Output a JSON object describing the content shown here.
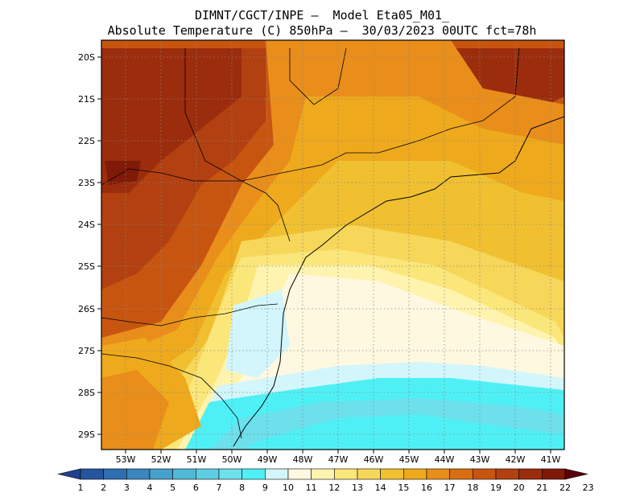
{
  "header": {
    "title_line1": "DIMNT/CGCT/INPE —  Model Eta05_M01_",
    "title_line2": "Absolute Temperature (C) 850hPa —  30/03/2023 00UTC fct=78h"
  },
  "map": {
    "lat_labels": [
      "20S",
      "21S",
      "22S",
      "23S",
      "24S",
      "25S",
      "26S",
      "27S",
      "28S",
      "29S"
    ],
    "lon_labels": [
      "53W",
      "52W",
      "51W",
      "50W",
      "49W",
      "48W",
      "47W",
      "46W",
      "45W",
      "44W",
      "43W",
      "42W",
      "41W"
    ]
  },
  "colorbar": {
    "labels": [
      "1",
      "2",
      "3",
      "4",
      "5",
      "6",
      "7",
      "8",
      "9",
      "10",
      "11",
      "12",
      "13",
      "14",
      "15",
      "16",
      "17",
      "18",
      "19",
      "20",
      "21",
      "22",
      "23"
    ],
    "colors": [
      "#1f3f8f",
      "#2456a0",
      "#2f6eb0",
      "#3a86bf",
      "#46a0cc",
      "#52b8d8",
      "#5ecde3",
      "#6de0ec",
      "#4ff0f5",
      "#d2f6fb",
      "#fff8e0",
      "#fff3b0",
      "#fbe67a",
      "#f7d75a",
      "#f0c030",
      "#eea91c",
      "#e98e1a",
      "#d86e12",
      "#c75510",
      "#b24010",
      "#9b2c0c",
      "#7f1a08",
      "#5a0008"
    ]
  }
}
